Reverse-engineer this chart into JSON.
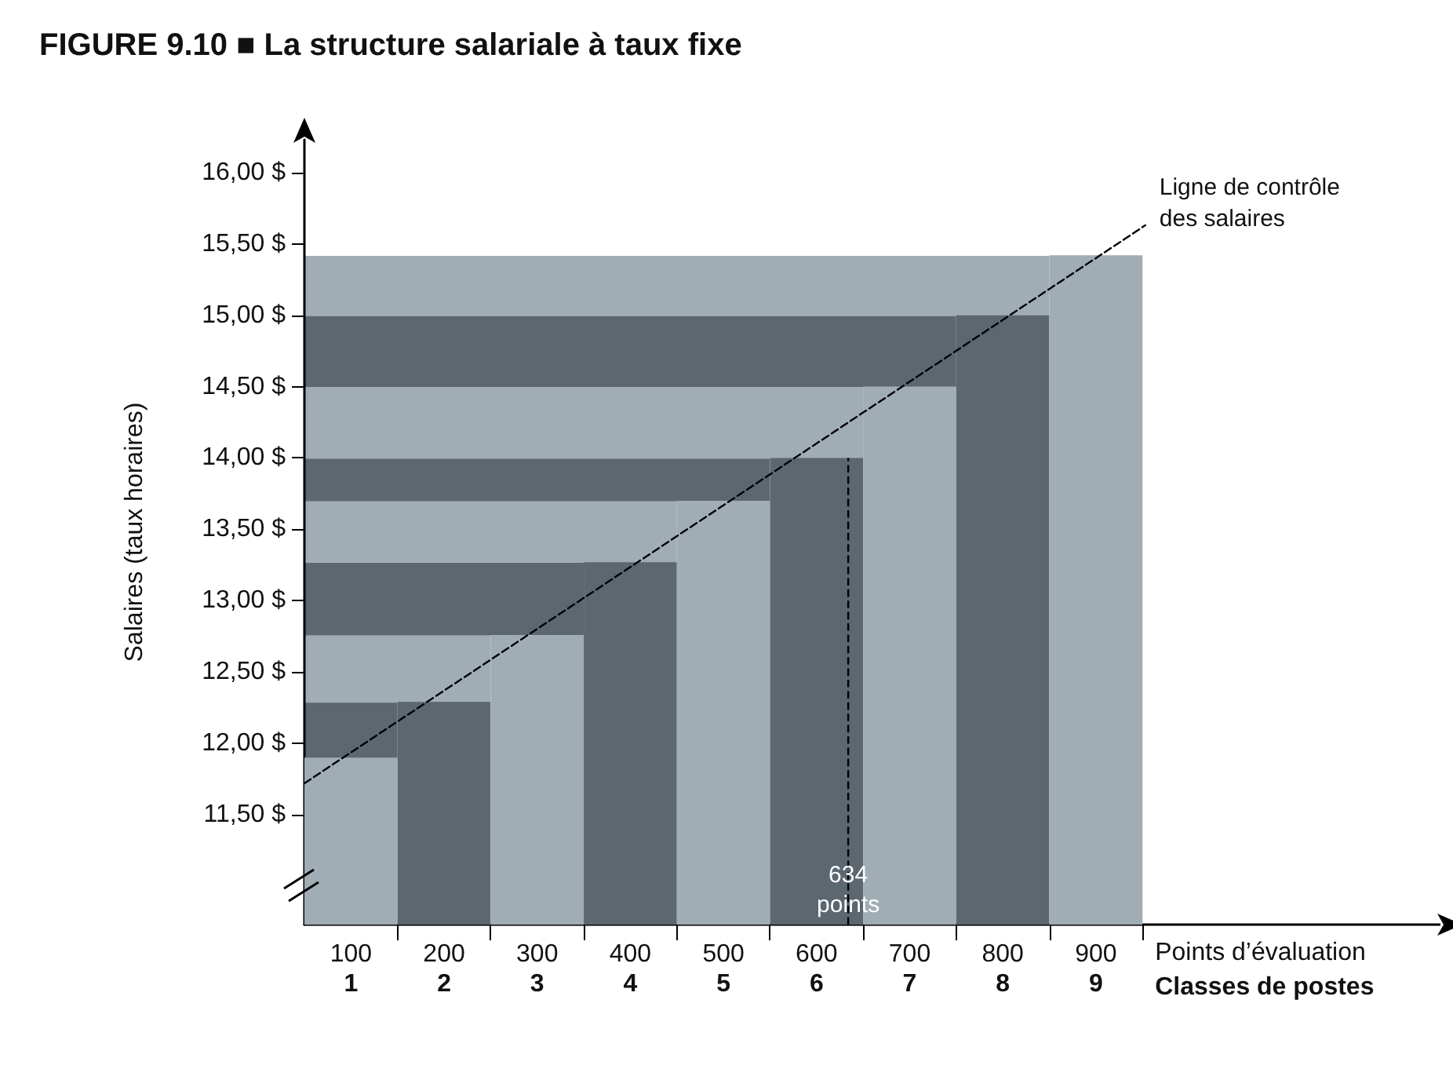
{
  "chart_data": {
    "type": "bar",
    "title": "FIGURE 9.10 ■ La structure salariale à taux fixe",
    "xlabel": "Points d’évaluation",
    "x2label": "Classes de postes",
    "x2lim": [
      0.5,
      12.7
    ],
    "x2ticks": [
      1,
      2,
      3,
      4,
      5,
      6,
      7,
      8,
      9
    ],
    "ylabel": "Salaires (taux horaires)",
    "x": [
      100,
      200,
      300,
      400,
      500,
      600,
      700,
      800,
      900
    ],
    "values": [
      11.9,
      12.29,
      12.76,
      13.27,
      13.7,
      14.0,
      14.5,
      15.0,
      15.42
    ],
    "colors": [
      "#a1adb4",
      "#5c6770",
      "#a1adb4",
      "#5c6770",
      "#a1adb4",
      "#5c6770",
      "#a1adb4",
      "#5c6770",
      "#a1adb4"
    ],
    "series": [
      {
        "type": "line",
        "name": "Ligne de contrôle des salaires",
        "color": "#000000",
        "line_style": "dashed",
        "x": [
          50,
          953
        ],
        "values": [
          11.72,
          15.63
        ]
      }
    ],
    "ref_lines": [
      {
        "axis": "x",
        "value": 634,
        "label": "634\npoints",
        "color": "#000000",
        "line_style": "dashed"
      }
    ],
    "xlim": [
      50,
      1270
    ],
    "xticks": [
      100,
      {
        "value": 150,
        "label": null
      },
      200,
      {
        "value": 250,
        "label": null
      },
      300,
      {
        "value": 350,
        "label": null
      },
      400,
      {
        "value": 450,
        "label": null
      },
      500,
      {
        "value": 550,
        "label": null
      },
      600,
      {
        "value": 650,
        "label": null
      },
      700,
      {
        "value": 750,
        "label": null
      },
      800,
      {
        "value": 850,
        "label": null
      },
      900,
      {
        "value": 950,
        "label": null
      }
    ],
    "ylim": [
      10.73,
      16.23
    ],
    "yticks": [
      {
        "value": 11.5,
        "label": "11,50 $"
      },
      {
        "value": 12,
        "label": "12,00 $"
      },
      {
        "value": 12.5,
        "label": "12,50 $"
      },
      {
        "value": 13,
        "label": "13,00 $"
      },
      {
        "value": 13.5,
        "label": "13,50 $"
      },
      {
        "value": 14,
        "label": "14,00 $"
      },
      {
        "value": 14.5,
        "label": "14,50 $"
      },
      {
        "value": 15,
        "label": "15,00 $"
      },
      {
        "value": 15.5,
        "label": "15,50 $"
      },
      {
        "value": 16,
        "label": "16,00 $"
      }
    ],
    "grid": false,
    "legend": false,
    "marker": "none"
  }
}
